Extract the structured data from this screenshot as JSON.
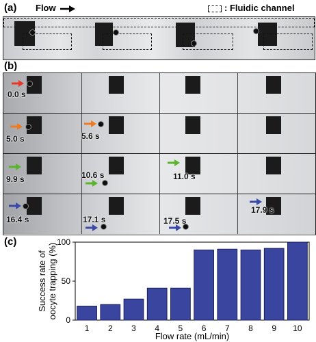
{
  "panels": {
    "a": "(a)",
    "b": "(b)",
    "c": "(c)"
  },
  "header": {
    "flow_label": "Flow",
    "legend_label": ": Fluidic channel"
  },
  "timestamps": {
    "row1": [
      "0.0 s"
    ],
    "row2": [
      "5.0 s",
      "5.6 s"
    ],
    "row3": [
      "9.9 s",
      "10.6 s",
      "11.0 s"
    ],
    "row4": [
      "16.4 s",
      "17.1 s",
      "17.5 s",
      "17.9 s"
    ]
  },
  "colors": {
    "row1_arrow": "#e8372b",
    "row2_arrow": "#f07a22",
    "row3_arrow": "#5ab42c",
    "row4_arrow": "#3b4aa8",
    "bar": "#3a45a0"
  },
  "chart_data": {
    "type": "bar",
    "categories": [
      "1",
      "2",
      "3",
      "4",
      "5",
      "6",
      "7",
      "8",
      "9",
      "10"
    ],
    "values": [
      18,
      20,
      27,
      41,
      41,
      90,
      91,
      90,
      92,
      100
    ],
    "xlabel": "Flow rate (mL/min)",
    "ylabel": "Success rate of oocyte trapping (%)",
    "ylabel_lines": [
      "Success rate of",
      "oocyte trapping (%)"
    ],
    "ylim": [
      0,
      100
    ],
    "yticks": [
      "0",
      "50",
      "100"
    ],
    "grid": false
  }
}
